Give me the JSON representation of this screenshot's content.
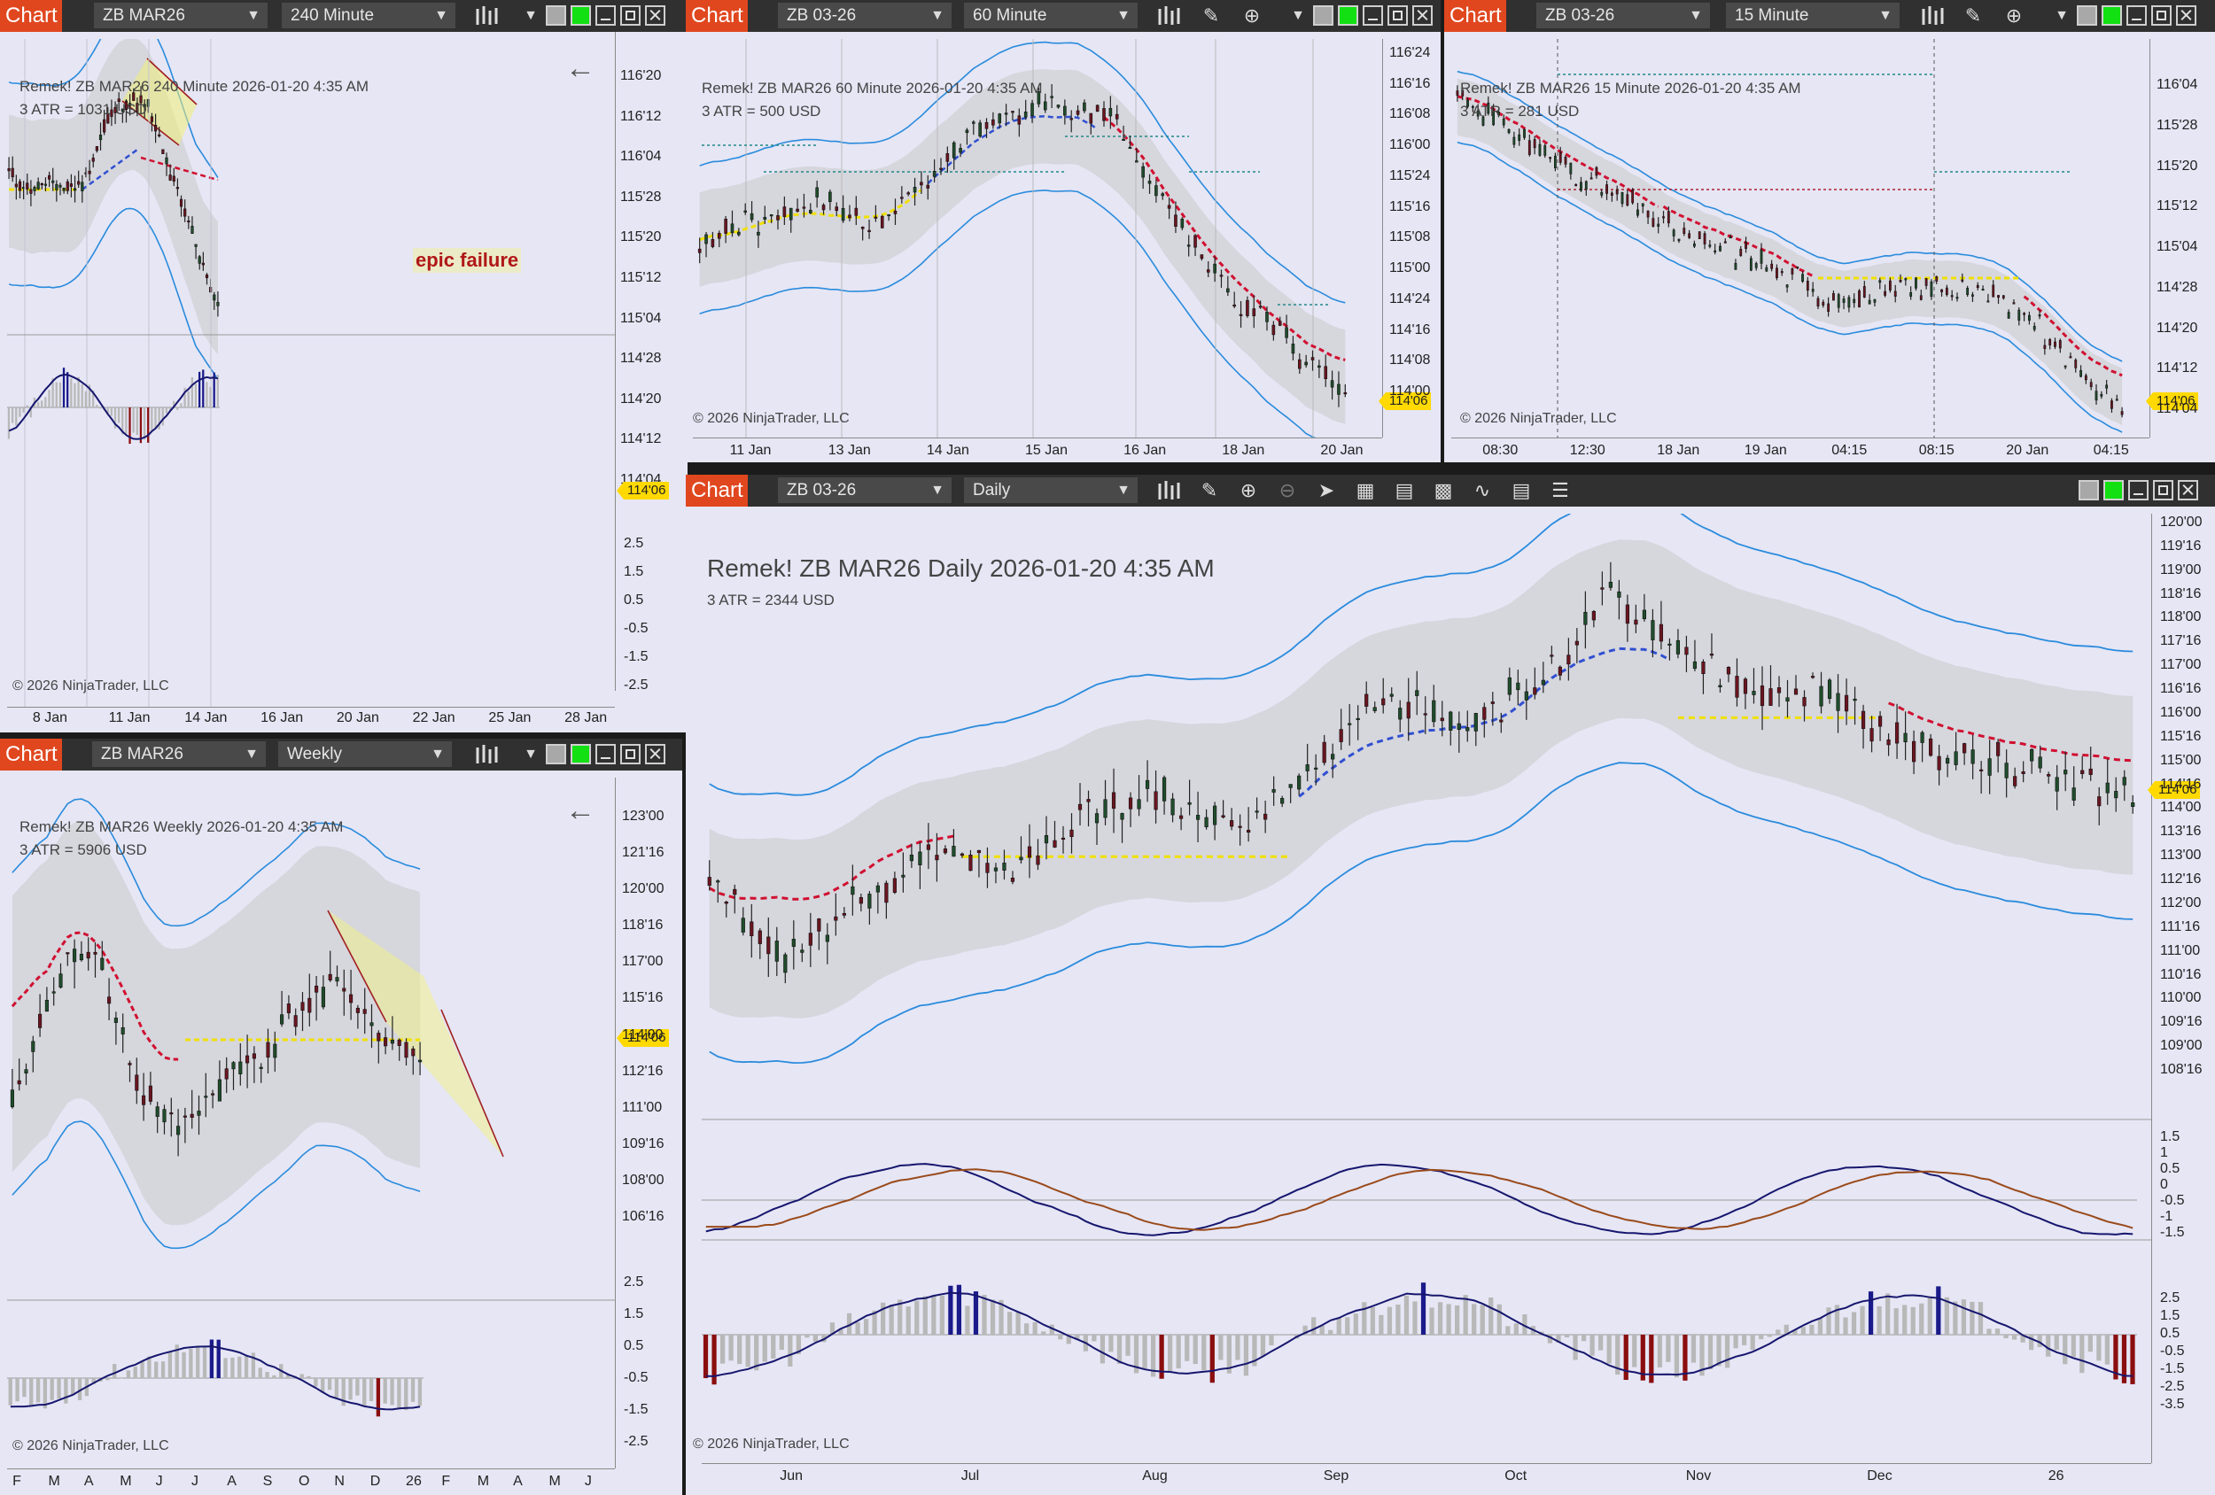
{
  "ui": {
    "chart_btn": "Chart",
    "copyright": "© 2026 NinjaTrader, LLC",
    "last_price": "114'06"
  },
  "w1": {
    "instrument": "ZB MAR26",
    "interval": "240 Minute",
    "title": "Remek!  ZB MAR26  240 Minute  2026-01-20 4:35 AM",
    "atr": "3 ATR = 1031 USD",
    "annotation": "epic failure",
    "y_ticks": [
      "116'20",
      "116'12",
      "116'04",
      "115'28",
      "115'20",
      "115'12",
      "115'04",
      "114'28",
      "114'20",
      "114'12",
      "114'04"
    ],
    "osc_ticks": [
      "2.5",
      "1.5",
      "0.5",
      "-0.5",
      "-1.5",
      "-2.5"
    ],
    "x_ticks": [
      "8 Jan",
      "11 Jan",
      "14 Jan",
      "16 Jan",
      "20 Jan",
      "22 Jan",
      "25 Jan",
      "28 Jan"
    ]
  },
  "w2": {
    "instrument": "ZB 03-26",
    "interval": "60 Minute",
    "title": "Remek!  ZB MAR26  60 Minute  2026-01-20 4:35 AM",
    "atr": "3 ATR = 500 USD",
    "y_ticks": [
      "116'24",
      "116'16",
      "116'08",
      "116'00",
      "115'24",
      "115'16",
      "115'08",
      "115'00",
      "114'24",
      "114'16",
      "114'08",
      "114'00"
    ],
    "x_ticks": [
      "11 Jan",
      "13 Jan",
      "14 Jan",
      "15 Jan",
      "16 Jan",
      "18 Jan",
      "20 Jan"
    ]
  },
  "w3": {
    "instrument": "ZB 03-26",
    "interval": "15 Minute",
    "title": "Remek!  ZB MAR26  15 Minute  2026-01-20 4:35 AM",
    "atr": "3 ATR = 281 USD",
    "y_ticks": [
      "116'04",
      "115'28",
      "115'20",
      "115'12",
      "115'04",
      "114'28",
      "114'20",
      "114'12",
      "114'04"
    ],
    "x_ticks": [
      "08:30",
      "12:30",
      "18 Jan",
      "19 Jan",
      "04:15",
      "08:15",
      "20 Jan",
      "04:15"
    ]
  },
  "w4": {
    "instrument": "ZB MAR26",
    "interval": "Weekly",
    "title": "Remek!  ZB MAR26  Weekly  2026-01-20 4:35 AM",
    "atr": "3 ATR = 5906 USD",
    "y_ticks": [
      "123'00",
      "121'16",
      "120'00",
      "118'16",
      "117'00",
      "115'16",
      "114'00",
      "112'16",
      "111'00",
      "109'16",
      "108'00",
      "106'16"
    ],
    "osc_ticks": [
      "2.5",
      "1.5",
      "0.5",
      "-0.5",
      "-1.5",
      "-2.5"
    ],
    "x_ticks": [
      "F",
      "M",
      "A",
      "M",
      "J",
      "J",
      "A",
      "S",
      "O",
      "N",
      "D",
      "26",
      "F",
      "M",
      "A",
      "M",
      "J"
    ]
  },
  "w5": {
    "instrument": "ZB 03-26",
    "interval": "Daily",
    "title": "Remek!  ZB MAR26  Daily  2026-01-20 4:35 AM",
    "atr": "3 ATR = 2344 USD",
    "y_ticks": [
      "120'00",
      "119'16",
      "119'00",
      "118'16",
      "118'00",
      "117'16",
      "117'00",
      "116'16",
      "116'00",
      "115'16",
      "115'00",
      "114'16",
      "114'00",
      "113'16",
      "113'00",
      "112'16",
      "112'00",
      "111'16",
      "111'00",
      "110'16",
      "110'00",
      "109'16",
      "109'00",
      "108'16"
    ],
    "osc1_ticks": [
      "1.5",
      "1",
      "0.5",
      "0",
      "-0.5",
      "-1",
      "-1.5"
    ],
    "osc2_ticks": [
      "2.5",
      "1.5",
      "0.5",
      "-0.5",
      "-1.5",
      "-2.5",
      "-3.5"
    ],
    "x_ticks": [
      "Jun",
      "Jul",
      "Aug",
      "Sep",
      "Oct",
      "Nov",
      "Dec",
      "26"
    ]
  },
  "colors": {
    "chart_btn": "#e0471f",
    "bg": "#e6e6f5",
    "up": "#1f4d2b",
    "down": "#6b1520",
    "band": "#2a8bdc",
    "bull": "#1a1a8a",
    "bear": "#8a0e0e",
    "price_tag": "#ffd900"
  },
  "icons": [
    "candlestick-icon",
    "pencil-icon",
    "zoom-in-icon",
    "zoom-out-icon",
    "pointer-icon",
    "data-box-icon",
    "object-list-icon",
    "properties-icon",
    "indicators-icon",
    "strategies-icon",
    "instrument-list-icon"
  ]
}
